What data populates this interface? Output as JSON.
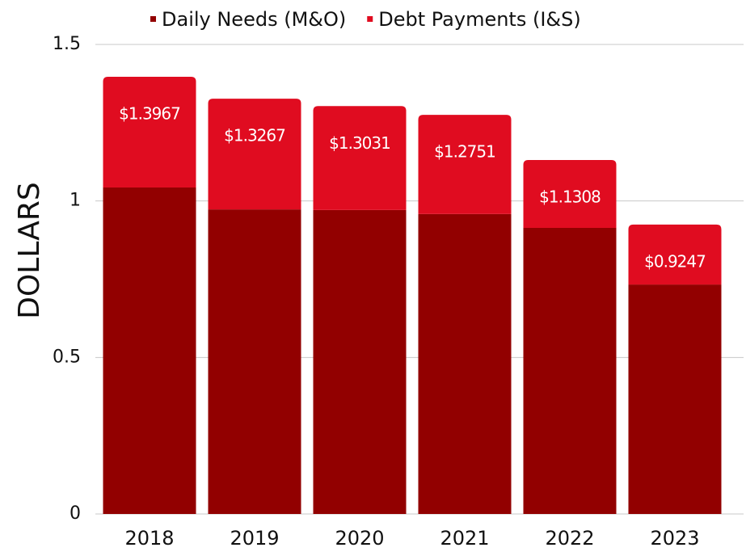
{
  "chart_data": {
    "type": "stacked_bar",
    "y_label": "DOLLARS",
    "categories": [
      "2018",
      "2019",
      "2020",
      "2021",
      "2022",
      "2023"
    ],
    "series": [
      {
        "name": "Daily Needs (M&O)",
        "color": "#920000",
        "values": [
          1.043,
          0.973,
          0.971,
          0.958,
          0.914,
          0.733
        ]
      },
      {
        "name": "Debt Payments (I&S)",
        "color": "#e00c20",
        "values": [
          0.3537,
          0.3537,
          0.3321,
          0.3171,
          0.2168,
          0.1917
        ]
      }
    ],
    "totals": [
      1.3967,
      1.3267,
      1.3031,
      1.2751,
      1.1308,
      0.9247
    ],
    "total_labels": [
      "$1.3967",
      "$1.3267",
      "$1.3031",
      "$1.2751",
      "$1.1308",
      "$0.9247"
    ],
    "ylim": [
      0,
      1.5
    ],
    "yticks": [
      0,
      0.5,
      1,
      1.5
    ],
    "grid": true,
    "legend": "top"
  }
}
